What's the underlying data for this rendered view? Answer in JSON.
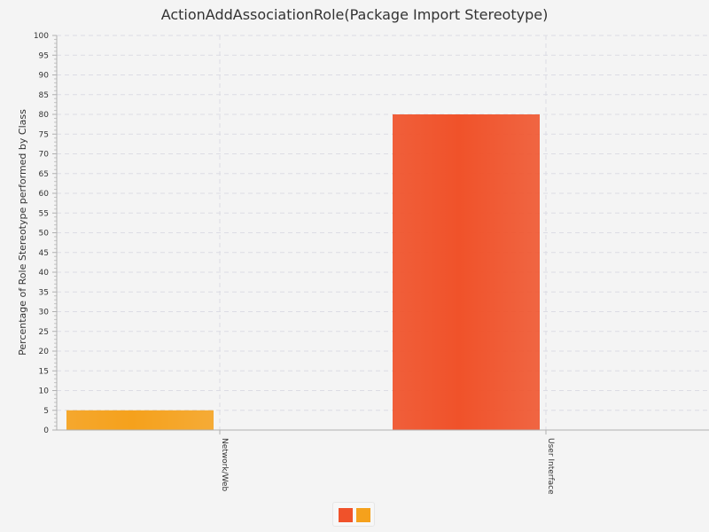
{
  "chart_data": {
    "type": "bar",
    "title": "ActionAddAssociationRole(Package Import Stereotype)",
    "xlabel": "",
    "ylabel": "Percentage of Role Stereotype performed by Class",
    "categories": [
      "Network/Web",
      "User Interface"
    ],
    "series": [
      {
        "color": "#f0522a",
        "values": [
          0,
          80
        ]
      },
      {
        "color": "#f5a11c",
        "values": [
          5,
          0
        ]
      }
    ],
    "ylim": [
      0,
      100
    ],
    "yticks": [
      0,
      5,
      10,
      15,
      20,
      25,
      30,
      35,
      40,
      45,
      50,
      55,
      60,
      65,
      70,
      75,
      80,
      85,
      90,
      95,
      100
    ],
    "grid": true,
    "legend": "bottom-center"
  }
}
